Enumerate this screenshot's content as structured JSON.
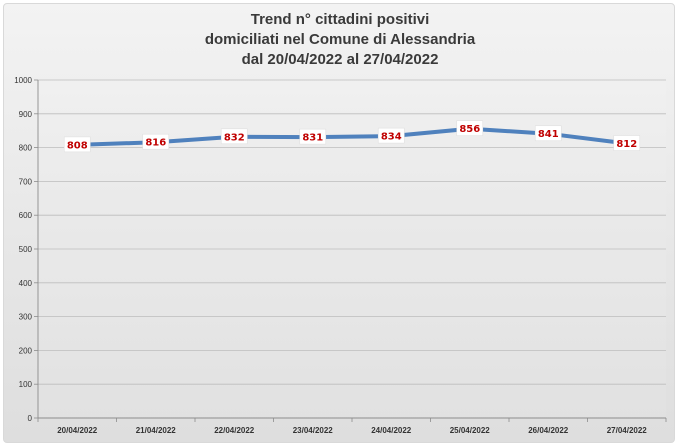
{
  "chart_data": {
    "type": "line",
    "title": [
      "Trend n° cittadini positivi",
      "domiciliati nel Comune di Alessandria",
      "dal 20/04/2022 al 27/04/2022"
    ],
    "categories": [
      "20/04/2022",
      "21/04/2022",
      "22/04/2022",
      "23/04/2022",
      "24/04/2022",
      "25/04/2022",
      "26/04/2022",
      "27/04/2022"
    ],
    "values": [
      808,
      816,
      832,
      831,
      834,
      856,
      841,
      812
    ],
    "ylim": [
      0,
      1000
    ],
    "yticks": [
      0,
      100,
      200,
      300,
      400,
      500,
      600,
      700,
      800,
      900,
      1000
    ],
    "grid": true,
    "line_color": "#4f81bd",
    "label_color": "#c00000"
  }
}
